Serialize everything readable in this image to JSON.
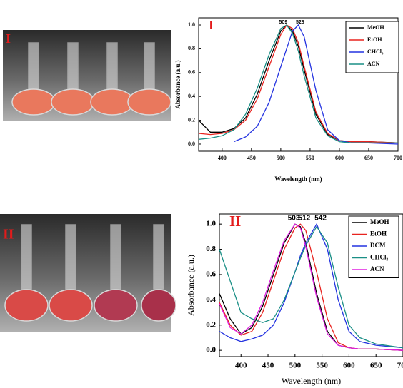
{
  "photos": [
    {
      "label": "I"
    },
    {
      "label": "II"
    }
  ],
  "chart_data": [
    {
      "type": "line",
      "panel_label": "I",
      "x_label": "Wavelength (nm)",
      "y_label": "Absorbance (a.u.)",
      "peak_labels": [
        509,
        528
      ],
      "x": [
        360,
        380,
        400,
        420,
        440,
        460,
        480,
        500,
        510,
        520,
        530,
        540,
        560,
        580,
        600,
        620,
        650,
        700
      ],
      "xlim": [
        360,
        700
      ],
      "xticks": [
        400,
        450,
        500,
        550,
        600,
        650,
        700
      ],
      "ylim": [
        -0.06,
        1.06
      ],
      "yticks": [
        {
          "value": 0,
          "label": "0.0"
        },
        {
          "value": 0.2,
          "label": "0.2"
        },
        {
          "value": 0.4,
          "label": "0.4"
        },
        {
          "value": 0.6,
          "label": "0.6"
        },
        {
          "value": 0.8,
          "label": "0.8"
        },
        {
          "value": 1,
          "label": "1.0"
        }
      ],
      "series": [
        {
          "name": "MeOH",
          "color": "#000000",
          "values": [
            0.2,
            0.1,
            0.1,
            0.13,
            0.22,
            0.42,
            0.7,
            0.95,
            1.0,
            0.95,
            0.82,
            0.62,
            0.25,
            0.08,
            0.03,
            0.02,
            0.02,
            0.01
          ]
        },
        {
          "name": "EtOH",
          "color": "#e8231f",
          "values": [
            0.09,
            0.08,
            0.09,
            0.12,
            0.2,
            0.38,
            0.65,
            0.92,
            1.0,
            0.97,
            0.85,
            0.65,
            0.27,
            0.09,
            0.03,
            0.02,
            0.02,
            0.01
          ]
        },
        {
          "name": "CHCl₃",
          "color": "#2433e0",
          "values": [
            null,
            null,
            null,
            0.02,
            0.06,
            0.15,
            0.35,
            0.65,
            0.8,
            0.95,
            1.0,
            0.9,
            0.45,
            0.12,
            0.03,
            0.01,
            0.01,
            0.0
          ]
        },
        {
          "name": "ACN",
          "color": "#1a8f86",
          "values": [
            0.04,
            0.05,
            0.07,
            0.12,
            0.25,
            0.47,
            0.75,
            0.97,
            1.0,
            0.93,
            0.78,
            0.57,
            0.22,
            0.07,
            0.02,
            0.01,
            0.01,
            0.01
          ]
        }
      ]
    },
    {
      "type": "line",
      "panel_label": "II",
      "x_label": "Wavelength (nm)",
      "y_label": "Absorbance (a.u.)",
      "peak_labels": [
        503,
        512,
        542
      ],
      "x": [
        360,
        380,
        400,
        420,
        440,
        460,
        480,
        500,
        510,
        520,
        540,
        560,
        580,
        600,
        620,
        650,
        700
      ],
      "xlim": [
        360,
        700
      ],
      "xticks": [
        400,
        450,
        500,
        550,
        600,
        650,
        700
      ],
      "ylim": [
        -0.05,
        1.08
      ],
      "yticks": [
        {
          "value": 0,
          "label": "0.0"
        },
        {
          "value": 0.2,
          "label": "0.2"
        },
        {
          "value": 0.4,
          "label": "0.4"
        },
        {
          "value": 0.6,
          "label": "0.6"
        },
        {
          "value": 0.8,
          "label": "0.8"
        },
        {
          "value": 1,
          "label": "1.0"
        }
      ],
      "series": [
        {
          "name": "MeOH",
          "color": "#000000",
          "values": [
            0.45,
            0.25,
            0.13,
            0.18,
            0.35,
            0.6,
            0.85,
            1.0,
            0.98,
            0.85,
            0.45,
            0.15,
            0.04,
            0.02,
            0.01,
            0.01,
            0.0
          ]
        },
        {
          "name": "EtOH",
          "color": "#e8231f",
          "values": [
            0.38,
            0.2,
            0.12,
            0.15,
            0.3,
            0.55,
            0.8,
            0.97,
            1.0,
            0.95,
            0.62,
            0.25,
            0.06,
            0.02,
            0.01,
            0.01,
            0.0
          ]
        },
        {
          "name": "DCM",
          "color": "#2433e0",
          "values": [
            0.15,
            0.1,
            0.07,
            0.09,
            0.12,
            0.2,
            0.38,
            0.62,
            0.75,
            0.85,
            1.0,
            0.8,
            0.4,
            0.15,
            0.07,
            0.04,
            0.02
          ]
        },
        {
          "name": "CHCl₃",
          "color": "#1a8f86",
          "values": [
            0.8,
            0.55,
            0.3,
            0.25,
            0.22,
            0.25,
            0.4,
            0.62,
            0.73,
            0.83,
            0.98,
            0.85,
            0.5,
            0.2,
            0.1,
            0.05,
            0.02
          ]
        },
        {
          "name": "ACN",
          "color": "#e020e0",
          "values": [
            0.37,
            0.18,
            0.13,
            0.2,
            0.38,
            0.63,
            0.87,
            1.0,
            0.97,
            0.82,
            0.42,
            0.13,
            0.04,
            0.02,
            0.01,
            0.01,
            0.0
          ]
        }
      ]
    }
  ]
}
